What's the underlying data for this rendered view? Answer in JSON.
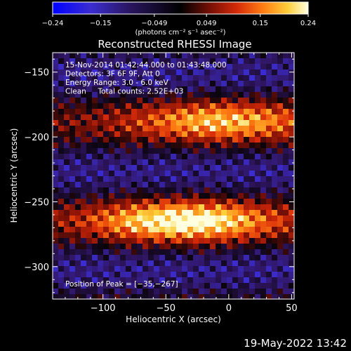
{
  "chart_data": {
    "type": "heatmap",
    "title": "Reconstructed RHESSI Image",
    "xlabel": "Heliocentric X (arcsec)",
    "ylabel": "Heliocentric Y (arcsec)",
    "xlim": [
      -140,
      52
    ],
    "ylim": [
      -325,
      -135
    ],
    "x_ticks": [
      -100,
      -50,
      0,
      50
    ],
    "x_tick_labels": [
      "−100",
      "−50",
      "0",
      "50"
    ],
    "y_ticks": [
      -150,
      -200,
      -250,
      -300
    ],
    "y_tick_labels": [
      "−150",
      "−200",
      "−250",
      "−300"
    ],
    "colorbar": {
      "min": -0.24,
      "max": 0.24,
      "ticks": [
        -0.24,
        -0.15,
        -0.049,
        0.049,
        0.15,
        0.24
      ],
      "tick_labels": [
        "−0.24",
        "−0.15",
        "−0.049",
        "0.049",
        "0.15",
        "0.24"
      ],
      "unit_label": "(photons cm⁻² s⁻¹ asec⁻²)"
    },
    "annotations": [
      "15-Nov-2014 01:42:44.000 to 01:43:48.000",
      "Detectors: 3F 6F 9F, Att 0",
      "Energy Range: 3.0 - 6.0 keV",
      "Clean     Total counts: 2.52E+03"
    ],
    "peak_label": "Position of Peak = [−35,−267]",
    "peak": [
      -35,
      -267
    ],
    "sources": [
      {
        "x": -35,
        "y": -265,
        "amp": 0.24
      },
      {
        "x": -5,
        "y": -188,
        "amp": 0.17
      }
    ],
    "colors": {
      "colormap": [
        "#0000ff",
        "#2a1a9a",
        "#1a0f2a",
        "#000000",
        "#3a0d05",
        "#a01608",
        "#e8380a",
        "#ff8c14",
        "#ffd23c",
        "#ffffe0"
      ]
    }
  },
  "footer": {
    "date": "19-May-2022 13:42"
  }
}
